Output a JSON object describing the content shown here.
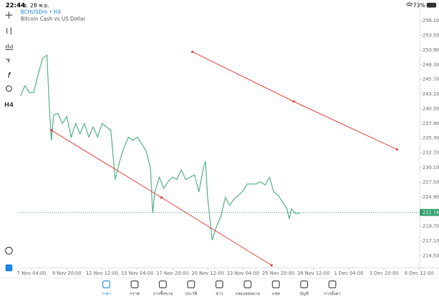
{
  "status_bar": {
    "time": "22:44",
    "date": "อ. 28 พ.ย.",
    "battery": "73%"
  },
  "toolbar": {
    "timeframe": "H4"
  },
  "chart_data": {
    "type": "line",
    "title": "BCHUSDm • H4",
    "subtitle": "Bitcoin Cash vs US Dollar",
    "x": [
      -5,
      -3,
      -1,
      1,
      3,
      5,
      7,
      8,
      9,
      10,
      12,
      14,
      16,
      18,
      20,
      22,
      24,
      26,
      28,
      30,
      32,
      34,
      36,
      38,
      40,
      42,
      44,
      46,
      48,
      50,
      52,
      54,
      55,
      56,
      58,
      60,
      62,
      64,
      66,
      68,
      70,
      72,
      74,
      76,
      78,
      79,
      80,
      82,
      84,
      86,
      88,
      90,
      92,
      94,
      96,
      98,
      100,
      102,
      104,
      106,
      108,
      110,
      112,
      114,
      116,
      117,
      118,
      120,
      122
    ],
    "values": [
      242.8,
      244.6,
      243.4,
      243.4,
      246.6,
      249.4,
      250.0,
      241.5,
      234.9,
      239.4,
      239.7,
      237.9,
      239.1,
      235.5,
      237.9,
      236.1,
      237.9,
      235.5,
      237.3,
      235.5,
      237.9,
      237.3,
      236.7,
      228.0,
      231.2,
      233.7,
      235.5,
      234.9,
      235.5,
      234.3,
      233.1,
      230.0,
      222.1,
      225.8,
      228.4,
      226.4,
      227.6,
      228.4,
      228.0,
      229.7,
      228.0,
      228.4,
      228.8,
      225.8,
      230.0,
      231.2,
      224.6,
      217.3,
      219.7,
      221.5,
      224.8,
      223.4,
      224.6,
      225.2,
      226.0,
      227.2,
      227.2,
      227.2,
      227.6,
      227.0,
      228.4,
      225.8,
      225.2,
      224.0,
      222.8,
      221.0,
      222.8,
      221.9,
      222.1
    ],
    "color": "#4caf7d",
    "trend_lines": [
      {
        "x": [
          9,
          59,
          109
        ],
        "values": [
          236.7,
          224.8,
          212.8
        ],
        "color": "#e53935"
      },
      {
        "x": [
          73,
          119,
          166
        ],
        "values": [
          250.6,
          241.8,
          233.3
        ],
        "color": "#e53935"
      }
    ],
    "current_price": 222.16,
    "current_price_color": "#2e9e6e",
    "xlim": [
      -5.6,
      176.3
    ],
    "ylim": [
      212.6,
      258.3
    ],
    "xticks": [
      {
        "value": 0,
        "label": "7 Nov 04:00"
      },
      {
        "value": 16,
        "label": "9 Nov 20:00"
      },
      {
        "value": 32,
        "label": "12 Nov 12:00"
      },
      {
        "value": 48,
        "label": "15 Nov 04:00"
      },
      {
        "value": 64,
        "label": "17 Nov 20:00"
      },
      {
        "value": 80,
        "label": "20 Nov 12:00"
      },
      {
        "value": 96,
        "label": "23 Nov 04:00"
      },
      {
        "value": 112,
        "label": "25 Nov 20:00"
      },
      {
        "value": 128,
        "label": "28 Nov 12:00"
      },
      {
        "value": 144,
        "label": "1 Dec 04:00"
      },
      {
        "value": 160,
        "label": "3 Dec 20:00"
      },
      {
        "value": 176,
        "label": "6 Dec 12:00"
      }
    ],
    "yticks": [
      {
        "value": 256.1,
        "label": "256.10"
      },
      {
        "value": 253.5,
        "label": "253.50"
      },
      {
        "value": 250.9,
        "label": "250.90"
      },
      {
        "value": 248.3,
        "label": "248.30"
      },
      {
        "value": 245.7,
        "label": "245.70"
      },
      {
        "value": 243.1,
        "label": "243.10"
      },
      {
        "value": 240.5,
        "label": "240.50"
      },
      {
        "value": 237.9,
        "label": "237.90"
      },
      {
        "value": 235.3,
        "label": "235.30"
      },
      {
        "value": 232.7,
        "label": "232.70"
      },
      {
        "value": 230.1,
        "label": "230.10"
      },
      {
        "value": 227.5,
        "label": "227.50"
      },
      {
        "value": 224.9,
        "label": "224.90"
      },
      {
        "value": 222.3,
        "label": "222.30"
      },
      {
        "value": 219.7,
        "label": "219.70"
      },
      {
        "value": 217.1,
        "label": "217.10"
      },
      {
        "value": 214.5,
        "label": "214.50"
      }
    ]
  },
  "nav": {
    "items": [
      "ราคา",
      "กราฟ",
      "การซื้อขาย",
      "ประวัติ",
      "ข่าว",
      "กล่องจดหมาย",
      "แชท",
      "บัญชี",
      "การตั้งค่า"
    ]
  }
}
